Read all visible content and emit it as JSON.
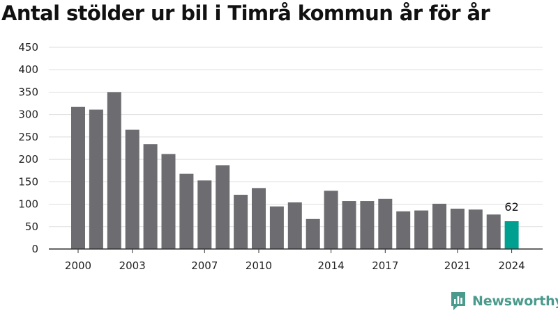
{
  "chart_data": {
    "type": "bar",
    "title": "Antal stölder ur bil i Timrå kommun år för år",
    "x": [
      2000,
      2001,
      2002,
      2003,
      2004,
      2005,
      2006,
      2007,
      2008,
      2009,
      2010,
      2011,
      2012,
      2013,
      2014,
      2015,
      2016,
      2017,
      2018,
      2019,
      2020,
      2021,
      2022,
      2023,
      2024
    ],
    "values": [
      317,
      311,
      350,
      266,
      234,
      212,
      168,
      153,
      187,
      121,
      136,
      95,
      104,
      67,
      130,
      107,
      107,
      112,
      84,
      86,
      101,
      90,
      88,
      77,
      62
    ],
    "x_tick_labels": [
      "2000",
      "2003",
      "2007",
      "2010",
      "2014",
      "2017",
      "2021",
      "2024"
    ],
    "y_tick_labels": [
      "0",
      "50",
      "100",
      "150",
      "200",
      "250",
      "300",
      "350",
      "400",
      "450"
    ],
    "ylim": [
      0,
      450
    ],
    "grid": true,
    "highlight": {
      "category": 2024,
      "label": "62"
    },
    "colors": {
      "bar": "#6d6c71",
      "highlight": "#00a090",
      "grid": "#dddddd",
      "axis": "#333333"
    }
  },
  "brand": {
    "name": "Newsworthy",
    "color": "#4a9a8d"
  }
}
